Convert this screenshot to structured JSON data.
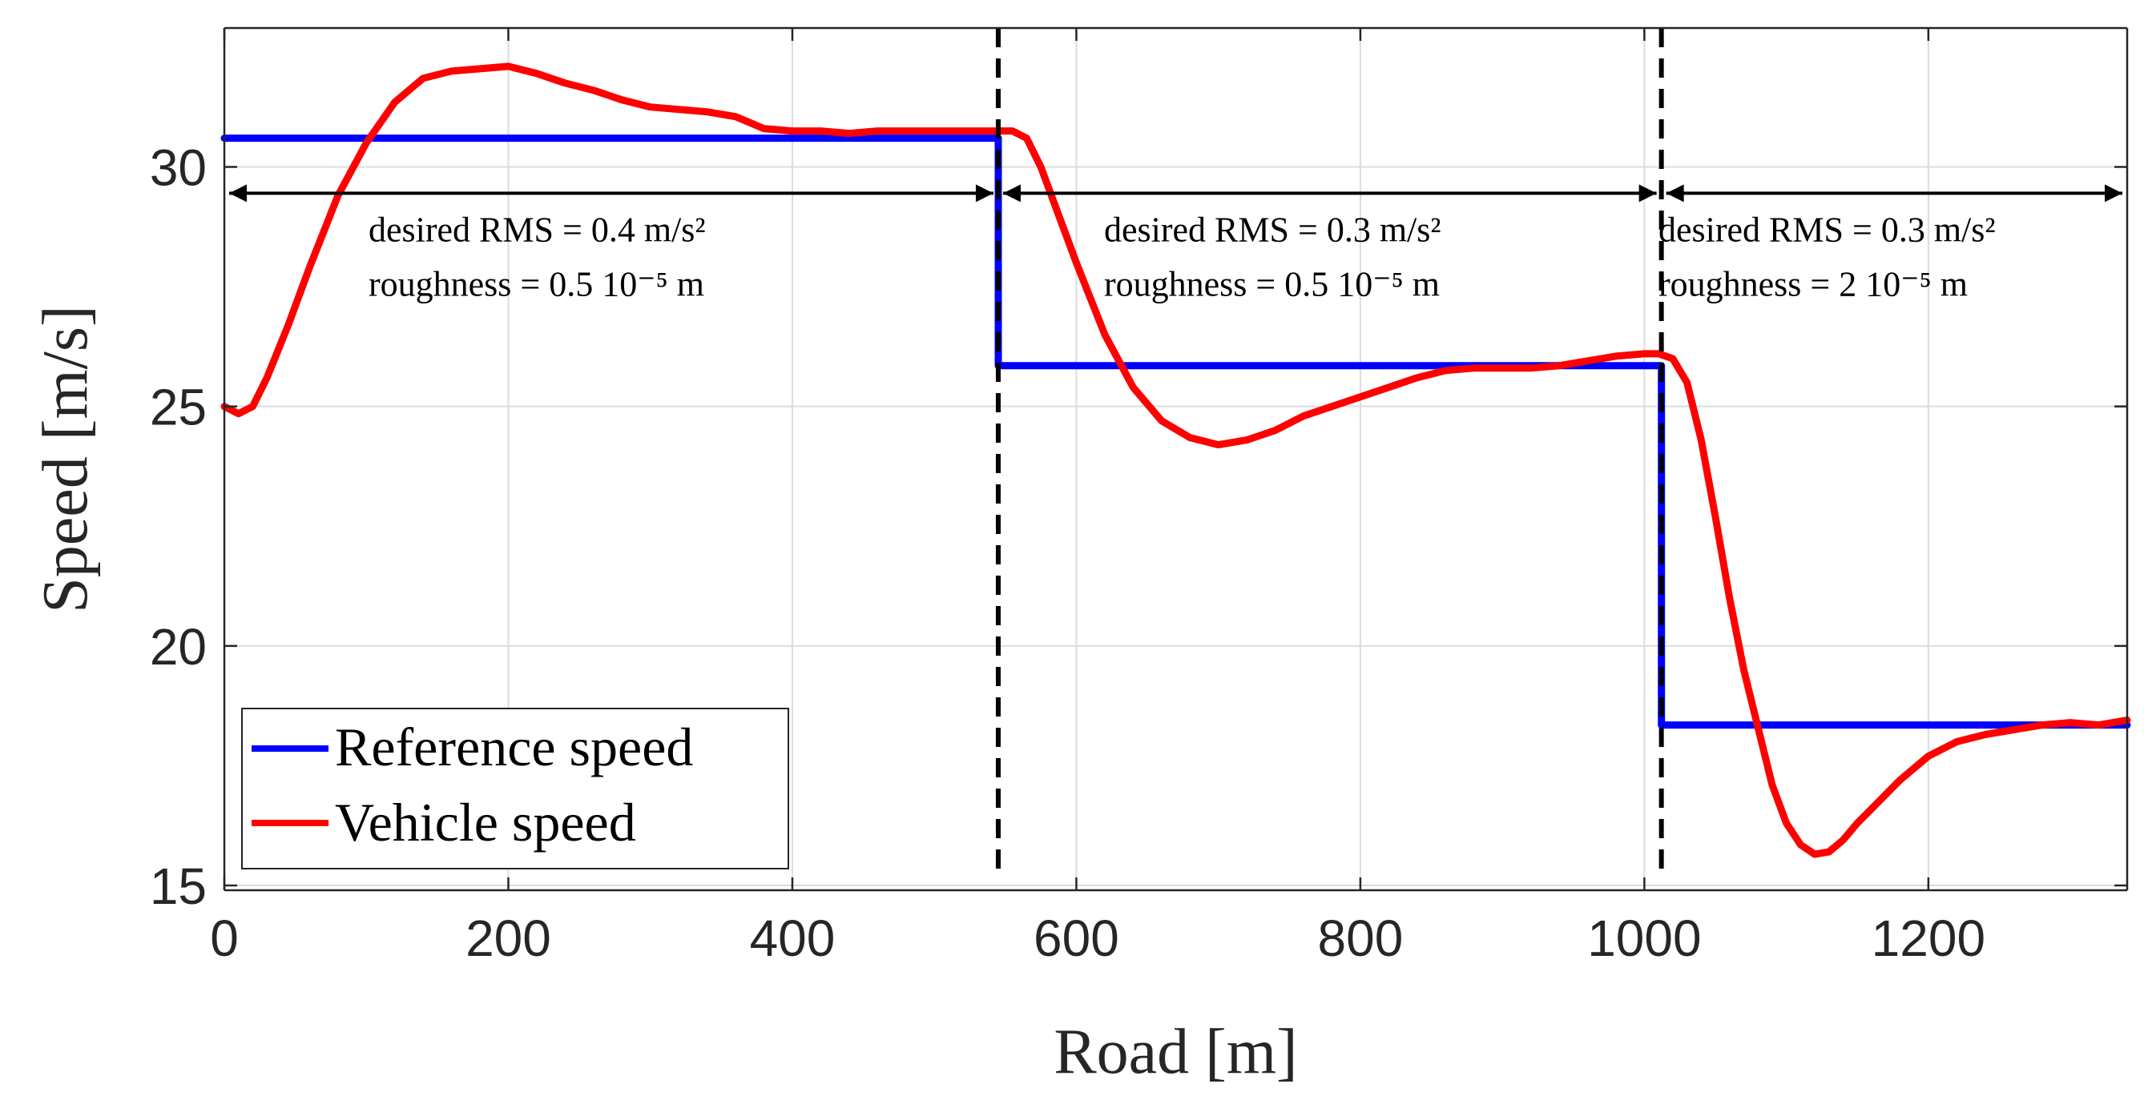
{
  "chart_data": {
    "type": "line",
    "xlabel": "Road [m]",
    "ylabel": "Speed [m/s]",
    "xlim": [
      0,
      1340
    ],
    "ylim": [
      14.9,
      32.9
    ],
    "xticks": [
      0,
      200,
      400,
      600,
      800,
      1000,
      1200
    ],
    "yticks": [
      15,
      20,
      25,
      30
    ],
    "grid": true,
    "legend_position": "bottom-left",
    "series": [
      {
        "name": "Reference speed",
        "color": "#0000ff",
        "x": [
          0,
          545,
          545,
          1012,
          1012,
          1340
        ],
        "y": [
          30.6,
          30.6,
          25.85,
          25.85,
          18.35,
          18.35
        ]
      },
      {
        "name": "Vehicle speed",
        "color": "#ff0000",
        "x": [
          0,
          10,
          20,
          30,
          45,
          60,
          80,
          100,
          120,
          140,
          160,
          180,
          200,
          220,
          240,
          260,
          280,
          300,
          320,
          340,
          360,
          380,
          400,
          420,
          440,
          460,
          480,
          500,
          520,
          540,
          555,
          565,
          575,
          585,
          600,
          620,
          640,
          660,
          680,
          700,
          720,
          740,
          760,
          780,
          800,
          820,
          840,
          860,
          880,
          900,
          920,
          940,
          960,
          980,
          1000,
          1010,
          1020,
          1030,
          1040,
          1050,
          1060,
          1070,
          1080,
          1090,
          1100,
          1110,
          1120,
          1130,
          1140,
          1150,
          1160,
          1180,
          1200,
          1220,
          1240,
          1260,
          1280,
          1300,
          1320,
          1340
        ],
        "y": [
          25.0,
          24.85,
          25.0,
          25.6,
          26.7,
          27.9,
          29.4,
          30.5,
          31.35,
          31.85,
          32.0,
          32.05,
          32.1,
          31.95,
          31.75,
          31.6,
          31.4,
          31.25,
          31.2,
          31.15,
          31.05,
          30.8,
          30.75,
          30.75,
          30.7,
          30.75,
          30.75,
          30.75,
          30.75,
          30.75,
          30.75,
          30.6,
          30.0,
          29.2,
          28.0,
          26.5,
          25.4,
          24.7,
          24.35,
          24.2,
          24.3,
          24.5,
          24.8,
          25.0,
          25.2,
          25.4,
          25.6,
          25.75,
          25.8,
          25.8,
          25.8,
          25.85,
          25.95,
          26.05,
          26.1,
          26.1,
          26.0,
          25.5,
          24.3,
          22.7,
          21.0,
          19.5,
          18.3,
          17.1,
          16.3,
          15.85,
          15.65,
          15.7,
          15.95,
          16.3,
          16.6,
          17.2,
          17.7,
          18.0,
          18.15,
          18.25,
          18.35,
          18.4,
          18.35,
          18.45
        ]
      }
    ],
    "vlines": [
      545,
      1012
    ],
    "annotations": {
      "arrow_y": 29.45,
      "segments": [
        {
          "x_start": 0,
          "x_end": 545,
          "line1": "desired RMS = 0.4 m/s²",
          "line2": "roughness = 0.5 10⁻⁵ m"
        },
        {
          "x_start": 545,
          "x_end": 1012,
          "line1": "desired RMS = 0.3 m/s²",
          "line2": "roughness = 0.5 10⁻⁵ m"
        },
        {
          "x_start": 1012,
          "x_end": 1340,
          "line1": "desired RMS = 0.3 m/s²",
          "line2": "roughness = 2 10⁻⁵ m"
        }
      ]
    }
  }
}
